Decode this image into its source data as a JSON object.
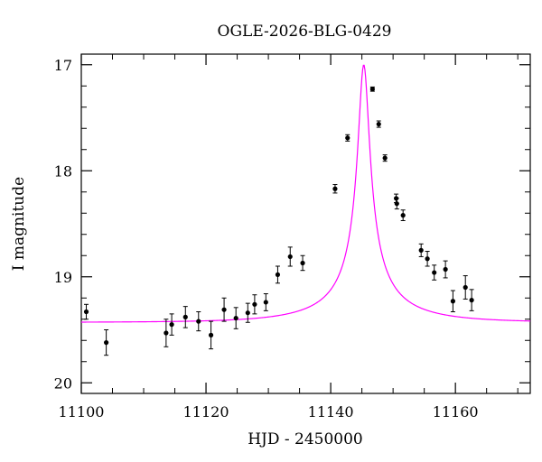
{
  "chart_data": {
    "type": "scatter",
    "title": "OGLE-2026-BLG-0429",
    "xlabel": "HJD - 2450000",
    "ylabel": "I magnitude",
    "xlim": [
      11100,
      11172
    ],
    "ylim": [
      16.9,
      20.1
    ],
    "y_inverted": true,
    "grid": false,
    "x_ticks": [
      11100,
      11120,
      11140,
      11160
    ],
    "x_tick_labels": [
      "11100",
      "11120",
      "11140",
      "11160"
    ],
    "y_ticks": [
      17,
      18,
      19,
      20
    ],
    "y_tick_labels": [
      "17",
      "18",
      "19",
      "20"
    ],
    "point_color": "#000000",
    "curve_color": "#ff00ff",
    "model": {
      "t0": 11145.3,
      "peak_mag": 17.0,
      "base_mag": 19.43
    },
    "points": [
      {
        "x": 11100.8,
        "y": 19.33,
        "err": 0.07
      },
      {
        "x": 11104.0,
        "y": 19.62,
        "err": 0.12
      },
      {
        "x": 11113.6,
        "y": 19.53,
        "err": 0.13
      },
      {
        "x": 11114.5,
        "y": 19.45,
        "err": 0.1
      },
      {
        "x": 11116.7,
        "y": 19.38,
        "err": 0.1
      },
      {
        "x": 11118.8,
        "y": 19.42,
        "err": 0.09
      },
      {
        "x": 11120.8,
        "y": 19.55,
        "err": 0.13
      },
      {
        "x": 11122.9,
        "y": 19.31,
        "err": 0.11
      },
      {
        "x": 11124.8,
        "y": 19.39,
        "err": 0.1
      },
      {
        "x": 11126.7,
        "y": 19.34,
        "err": 0.09
      },
      {
        "x": 11127.8,
        "y": 19.26,
        "err": 0.09
      },
      {
        "x": 11129.6,
        "y": 19.24,
        "err": 0.08
      },
      {
        "x": 11131.5,
        "y": 18.98,
        "err": 0.08
      },
      {
        "x": 11133.5,
        "y": 18.81,
        "err": 0.09
      },
      {
        "x": 11135.5,
        "y": 18.87,
        "err": 0.07
      },
      {
        "x": 11140.7,
        "y": 18.17,
        "err": 0.04
      },
      {
        "x": 11142.7,
        "y": 17.69,
        "err": 0.03
      },
      {
        "x": 11146.7,
        "y": 17.23,
        "err": 0.02
      },
      {
        "x": 11147.7,
        "y": 17.56,
        "err": 0.03
      },
      {
        "x": 11148.7,
        "y": 17.88,
        "err": 0.03
      },
      {
        "x": 11150.5,
        "y": 18.26,
        "err": 0.04
      },
      {
        "x": 11150.6,
        "y": 18.31,
        "err": 0.05
      },
      {
        "x": 11151.6,
        "y": 18.42,
        "err": 0.05
      },
      {
        "x": 11154.5,
        "y": 18.75,
        "err": 0.06
      },
      {
        "x": 11155.5,
        "y": 18.83,
        "err": 0.07
      },
      {
        "x": 11156.6,
        "y": 18.96,
        "err": 0.07
      },
      {
        "x": 11158.4,
        "y": 18.93,
        "err": 0.08
      },
      {
        "x": 11159.6,
        "y": 19.23,
        "err": 0.1
      },
      {
        "x": 11161.6,
        "y": 19.1,
        "err": 0.11
      },
      {
        "x": 11162.6,
        "y": 19.22,
        "err": 0.1
      }
    ]
  }
}
